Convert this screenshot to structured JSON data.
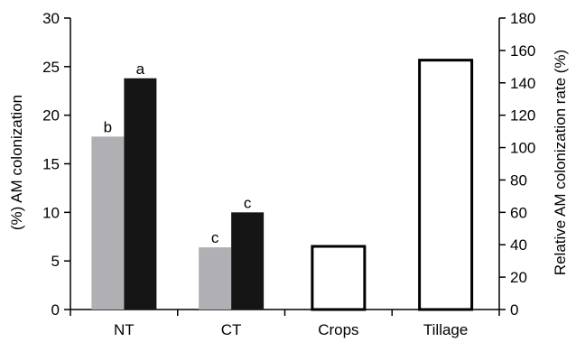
{
  "chart_data": {
    "type": "bar",
    "categories": [
      "NT",
      "CT",
      "Crops",
      "Tillage"
    ],
    "left_axis": {
      "ylabel": "(%) AM colonization",
      "ylim": [
        0,
        30
      ],
      "ticks": [
        "0",
        "5",
        "10",
        "15",
        "20",
        "25",
        "30"
      ]
    },
    "right_axis": {
      "ylabel": "Relative AM colonization rate (%)",
      "ylim": [
        0,
        180
      ],
      "ticks": [
        "0",
        "20",
        "40",
        "60",
        "80",
        "100",
        "120",
        "140",
        "160",
        "180"
      ]
    },
    "series": [
      {
        "axis": "left",
        "color": "#b0b0b4",
        "points": [
          {
            "category": "NT",
            "value": 17.8,
            "label": "b"
          },
          {
            "category": "CT",
            "value": 6.4,
            "label": "c"
          }
        ]
      },
      {
        "axis": "left",
        "color": "#151515",
        "points": [
          {
            "category": "NT",
            "value": 23.8,
            "label": "a"
          },
          {
            "category": "CT",
            "value": 10.0,
            "label": "c"
          }
        ]
      },
      {
        "axis": "right",
        "color": "#ffffff",
        "points": [
          {
            "category": "Crops",
            "value": 39
          },
          {
            "category": "Tillage",
            "value": 154
          }
        ]
      }
    ],
    "grid": false,
    "legend": "none"
  }
}
